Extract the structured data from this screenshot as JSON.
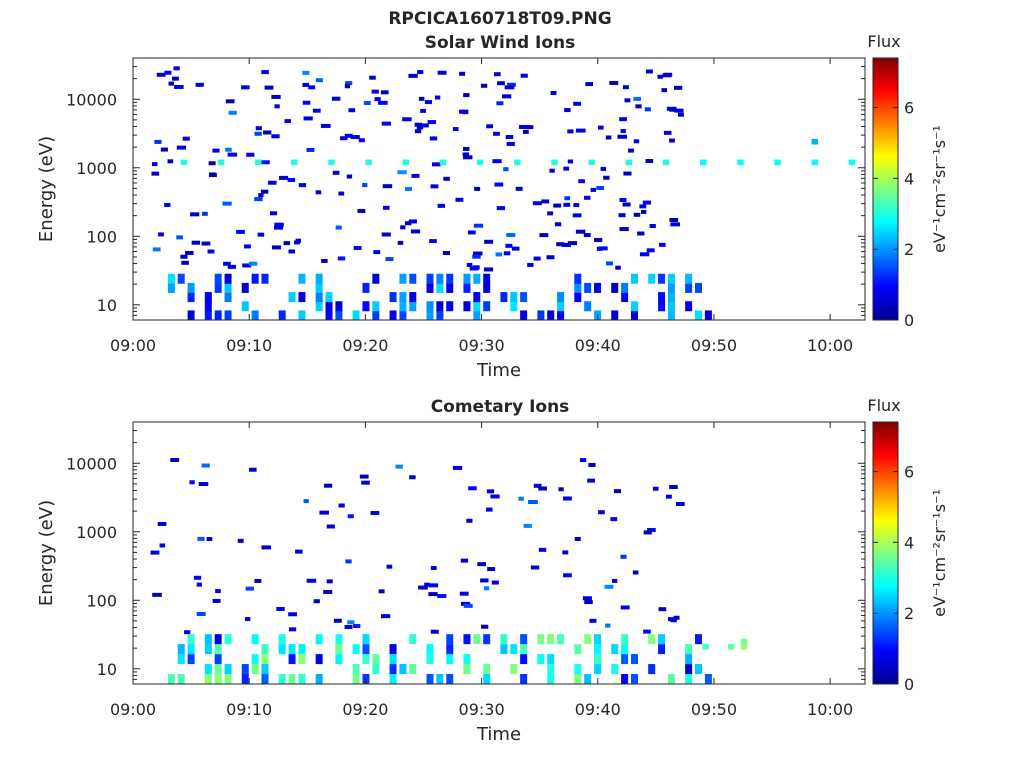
{
  "figure": {
    "title": "RPCICA160718T09.PNG"
  },
  "colorbar": {
    "label": "Flux",
    "unit_label": "eV⁻¹cm⁻²sr⁻¹s⁻¹",
    "ticks": [
      "0",
      "2",
      "4",
      "6"
    ],
    "range": [
      0,
      7.4
    ],
    "colormap": "jet"
  },
  "chart_data": [
    {
      "type": "heatmap",
      "title": "Solar Wind Ions",
      "xlabel": "Time",
      "ylabel": "Energy (eV)",
      "x_ticks": [
        "09:00",
        "09:10",
        "09:20",
        "09:30",
        "09:40",
        "09:50",
        "10:00"
      ],
      "x_range_minutes": [
        0,
        63
      ],
      "y_scale": "log",
      "y_ticks": [
        "10",
        "100",
        "1000",
        "10000"
      ],
      "y_range": [
        6,
        40000
      ],
      "sparse_cells_till_minute": 47,
      "sparse_energy_range": [
        20,
        30000
      ],
      "low_energy_range": [
        6,
        28
      ],
      "cells": [
        {
          "t": 4.1,
          "e": 1200,
          "v": 3.0
        },
        {
          "t": 7.3,
          "e": 1200,
          "v": 3.0
        },
        {
          "t": 10.5,
          "e": 1200,
          "v": 3.0
        },
        {
          "t": 13.6,
          "e": 1200,
          "v": 3.0
        },
        {
          "t": 16.8,
          "e": 1200,
          "v": 3.0
        },
        {
          "t": 20.0,
          "e": 1200,
          "v": 3.0
        },
        {
          "t": 23.2,
          "e": 1200,
          "v": 3.0
        },
        {
          "t": 26.4,
          "e": 1200,
          "v": 3.0
        },
        {
          "t": 29.6,
          "e": 1200,
          "v": 3.0
        },
        {
          "t": 32.8,
          "e": 1200,
          "v": 3.0
        },
        {
          "t": 36.0,
          "e": 1200,
          "v": 3.0
        },
        {
          "t": 39.2,
          "e": 1200,
          "v": 3.0
        },
        {
          "t": 42.4,
          "e": 1200,
          "v": 3.0
        },
        {
          "t": 45.6,
          "e": 1200,
          "v": 3.0
        },
        {
          "t": 48.8,
          "e": 1200,
          "v": 2.8
        },
        {
          "t": 52.0,
          "e": 1200,
          "v": 2.8
        },
        {
          "t": 55.2,
          "e": 1200,
          "v": 2.8
        },
        {
          "t": 58.4,
          "e": 1200,
          "v": 2.8
        },
        {
          "t": 61.6,
          "e": 1200,
          "v": 2.8
        },
        {
          "t": 58.4,
          "e": 2400,
          "v": 2.2
        }
      ]
    },
    {
      "type": "heatmap",
      "title": "Cometary Ions",
      "xlabel": "Time",
      "ylabel": "Energy (eV)",
      "x_ticks": [
        "09:00",
        "09:10",
        "09:20",
        "09:30",
        "09:40",
        "09:50",
        "10:00"
      ],
      "x_range_minutes": [
        0,
        63
      ],
      "y_scale": "log",
      "y_ticks": [
        "10",
        "100",
        "1000",
        "10000"
      ],
      "y_range": [
        6,
        40000
      ],
      "sparse_cells_till_minute": 47,
      "sparse_energy_range": [
        20,
        12000
      ],
      "low_energy_range": [
        6,
        32
      ],
      "cells": [
        {
          "t": 49.0,
          "e": 21,
          "v": 3.3
        },
        {
          "t": 51.2,
          "e": 21,
          "v": 3.5
        },
        {
          "t": 52.3,
          "e": 21,
          "v": 3.8
        },
        {
          "t": 52.3,
          "e": 25,
          "v": 3.6
        }
      ]
    }
  ]
}
